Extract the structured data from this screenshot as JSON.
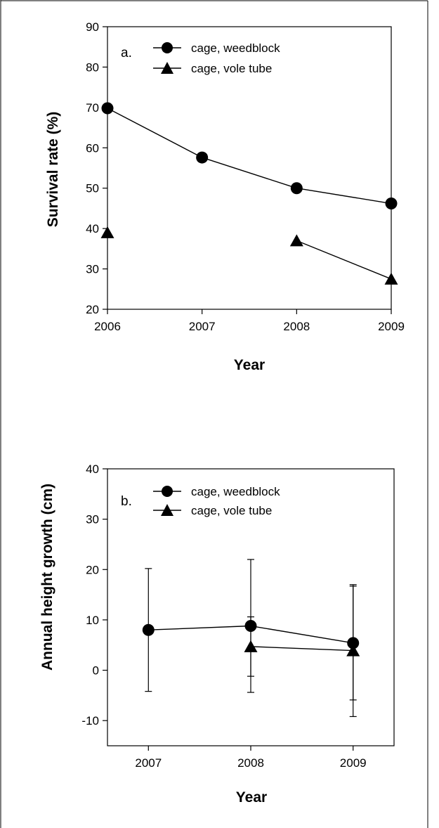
{
  "chart_data": [
    {
      "type": "line",
      "panel_label": "a.",
      "xlabel": "Year",
      "ylabel": "Survival rate (%)",
      "x": [
        2006,
        2007,
        2008,
        2009
      ],
      "x_ticks": [
        "2006",
        "2007",
        "2008",
        "2009"
      ],
      "xlim": [
        2006,
        2009
      ],
      "ylim": [
        20,
        90
      ],
      "y_ticks": [
        "20",
        "30",
        "40",
        "50",
        "60",
        "70",
        "80",
        "90"
      ],
      "grid": false,
      "legend_position": "top-left",
      "series": [
        {
          "name": "cage, weedblock",
          "marker": "circle",
          "values": [
            69.8,
            57.6,
            50.0,
            46.2
          ]
        },
        {
          "name": "cage, vole tube",
          "marker": "triangle",
          "values": [
            39.0,
            null,
            37.0,
            27.5
          ]
        }
      ]
    },
    {
      "type": "line",
      "panel_label": "b.",
      "xlabel": "Year",
      "ylabel": "Annual height growth (cm)",
      "x": [
        2007,
        2008,
        2009
      ],
      "x_ticks": [
        "2007",
        "2008",
        "2009"
      ],
      "xlim": [
        2006.6,
        2009.4
      ],
      "ylim": [
        -15,
        40
      ],
      "y_ticks": [
        "-10",
        "0",
        "10",
        "20",
        "30",
        "40"
      ],
      "grid": false,
      "legend_position": "top-left",
      "series": [
        {
          "name": "cage, weedblock",
          "marker": "circle",
          "values": [
            8.0,
            8.8,
            5.4
          ],
          "error_bars": [
            [
              -4.2,
              20.2
            ],
            [
              -4.4,
              22.0
            ],
            [
              -9.2,
              17.0
            ]
          ]
        },
        {
          "name": "cage, vole tube",
          "marker": "triangle",
          "values": [
            null,
            4.7,
            3.9
          ],
          "error_bars": [
            null,
            [
              -1.2,
              10.6
            ],
            [
              -5.9,
              16.7
            ]
          ]
        }
      ]
    }
  ]
}
